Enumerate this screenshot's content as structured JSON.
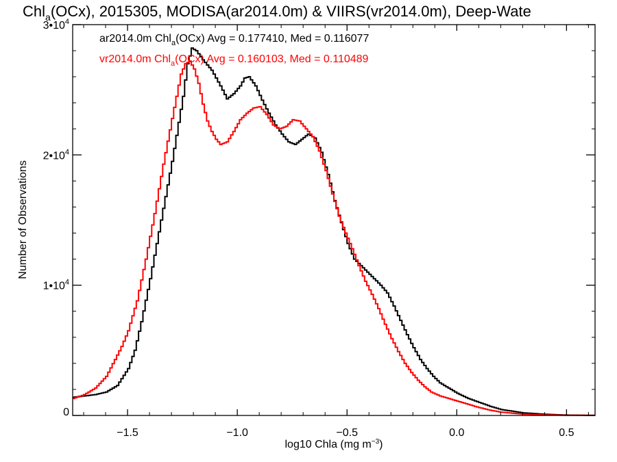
{
  "chart_data": {
    "type": "line",
    "style": "step histogram",
    "title_parts": {
      "pre": "Chl",
      "sub": "a",
      "post": "(OCx), 2015305, MODISA(ar2014.0m) & VIIRS(vr2014.0m), Deep-Wate"
    },
    "xlabel_parts": {
      "pre": "log10 Chla (mg m",
      "sup": "−3",
      "post": ")"
    },
    "ylabel": "Number of Observations",
    "xlim": [
      -1.75,
      0.63
    ],
    "ylim": [
      0,
      30000
    ],
    "x_ticks": [
      {
        "value": -1.5,
        "label": "−1.5"
      },
      {
        "value": -1.0,
        "label": "−1.0"
      },
      {
        "value": -0.5,
        "label": "−0.5"
      },
      {
        "value": 0.0,
        "label": "0.0"
      },
      {
        "value": 0.5,
        "label": "0.5"
      }
    ],
    "y_ticks": [
      {
        "value": 0,
        "base": "0",
        "sup": ""
      },
      {
        "value": 10000,
        "base": "1•10",
        "sup": "4"
      },
      {
        "value": 20000,
        "base": "2•10",
        "sup": "4"
      },
      {
        "value": 30000,
        "base": "3•10",
        "sup": "4"
      }
    ],
    "grid": false,
    "series": [
      {
        "legend_parts": {
          "pre": "ar2014.0m Chl",
          "sub": "a",
          "post": "(OCx) Avg = 0.177410, Med = 0.116077"
        },
        "color": "#000000",
        "points": [
          [
            -1.75,
            1400
          ],
          [
            -1.7,
            1500
          ],
          [
            -1.65,
            1600
          ],
          [
            -1.6,
            1800
          ],
          [
            -1.55,
            2300
          ],
          [
            -1.5,
            3600
          ],
          [
            -1.47,
            5000
          ],
          [
            -1.44,
            7200
          ],
          [
            -1.4,
            10500
          ],
          [
            -1.35,
            15000
          ],
          [
            -1.3,
            19500
          ],
          [
            -1.27,
            22500
          ],
          [
            -1.25,
            24500
          ],
          [
            -1.23,
            27000
          ],
          [
            -1.21,
            28200
          ],
          [
            -1.19,
            28000
          ],
          [
            -1.16,
            27300
          ],
          [
            -1.12,
            26500
          ],
          [
            -1.08,
            25300
          ],
          [
            -1.05,
            24300
          ],
          [
            -1.02,
            24700
          ],
          [
            -0.99,
            25300
          ],
          [
            -0.97,
            25900
          ],
          [
            -0.95,
            26000
          ],
          [
            -0.92,
            25300
          ],
          [
            -0.89,
            24200
          ],
          [
            -0.86,
            23200
          ],
          [
            -0.83,
            22300
          ],
          [
            -0.8,
            21600
          ],
          [
            -0.77,
            21000
          ],
          [
            -0.74,
            20800
          ],
          [
            -0.71,
            21200
          ],
          [
            -0.68,
            21600
          ],
          [
            -0.65,
            21300
          ],
          [
            -0.62,
            20200
          ],
          [
            -0.59,
            18500
          ],
          [
            -0.56,
            16500
          ],
          [
            -0.53,
            14800
          ],
          [
            -0.5,
            13200
          ],
          [
            -0.47,
            12000
          ],
          [
            -0.44,
            11500
          ],
          [
            -0.41,
            11000
          ],
          [
            -0.38,
            10500
          ],
          [
            -0.35,
            10000
          ],
          [
            -0.32,
            9400
          ],
          [
            -0.29,
            8400
          ],
          [
            -0.26,
            7300
          ],
          [
            -0.23,
            6200
          ],
          [
            -0.2,
            5200
          ],
          [
            -0.17,
            4300
          ],
          [
            -0.14,
            3600
          ],
          [
            -0.11,
            3000
          ],
          [
            -0.08,
            2500
          ],
          [
            -0.04,
            2100
          ],
          [
            0.0,
            1700
          ],
          [
            0.05,
            1300
          ],
          [
            0.1,
            1000
          ],
          [
            0.15,
            700
          ],
          [
            0.2,
            450
          ],
          [
            0.3,
            200
          ],
          [
            0.4,
            90
          ],
          [
            0.5,
            30
          ],
          [
            0.63,
            10
          ]
        ]
      },
      {
        "legend_parts": {
          "pre": "vr2014.0m Chl",
          "sub": "a",
          "post": "(OCx) Avg = 0.160103, Med = 0.110489"
        },
        "color": "#ff0000",
        "points": [
          [
            -1.75,
            1300
          ],
          [
            -1.7,
            1600
          ],
          [
            -1.65,
            2100
          ],
          [
            -1.6,
            3000
          ],
          [
            -1.56,
            4300
          ],
          [
            -1.53,
            5300
          ],
          [
            -1.5,
            6500
          ],
          [
            -1.46,
            8800
          ],
          [
            -1.42,
            12000
          ],
          [
            -1.38,
            15500
          ],
          [
            -1.34,
            19300
          ],
          [
            -1.3,
            22800
          ],
          [
            -1.28,
            24500
          ],
          [
            -1.26,
            26200
          ],
          [
            -1.24,
            27000
          ],
          [
            -1.22,
            27200
          ],
          [
            -1.2,
            26600
          ],
          [
            -1.18,
            25500
          ],
          [
            -1.16,
            23900
          ],
          [
            -1.14,
            22600
          ],
          [
            -1.12,
            21800
          ],
          [
            -1.1,
            21200
          ],
          [
            -1.08,
            20800
          ],
          [
            -1.05,
            21000
          ],
          [
            -1.02,
            21800
          ],
          [
            -0.99,
            22700
          ],
          [
            -0.96,
            23200
          ],
          [
            -0.93,
            23600
          ],
          [
            -0.9,
            23700
          ],
          [
            -0.87,
            23100
          ],
          [
            -0.84,
            22300
          ],
          [
            -0.81,
            22000
          ],
          [
            -0.78,
            22200
          ],
          [
            -0.75,
            22700
          ],
          [
            -0.72,
            22600
          ],
          [
            -0.69,
            22000
          ],
          [
            -0.66,
            21400
          ],
          [
            -0.63,
            20300
          ],
          [
            -0.6,
            18800
          ],
          [
            -0.57,
            17000
          ],
          [
            -0.54,
            15300
          ],
          [
            -0.51,
            14000
          ],
          [
            -0.48,
            12800
          ],
          [
            -0.45,
            11500
          ],
          [
            -0.42,
            10300
          ],
          [
            -0.39,
            9300
          ],
          [
            -0.36,
            8200
          ],
          [
            -0.33,
            7000
          ],
          [
            -0.3,
            5900
          ],
          [
            -0.27,
            4900
          ],
          [
            -0.24,
            4000
          ],
          [
            -0.21,
            3300
          ],
          [
            -0.18,
            2700
          ],
          [
            -0.15,
            2200
          ],
          [
            -0.12,
            1800
          ],
          [
            -0.08,
            1500
          ],
          [
            -0.04,
            1300
          ],
          [
            0.0,
            1100
          ],
          [
            0.05,
            850
          ],
          [
            0.1,
            600
          ],
          [
            0.15,
            400
          ],
          [
            0.2,
            250
          ],
          [
            0.3,
            100
          ],
          [
            0.4,
            40
          ],
          [
            0.5,
            15
          ],
          [
            0.63,
            5
          ]
        ]
      }
    ]
  }
}
